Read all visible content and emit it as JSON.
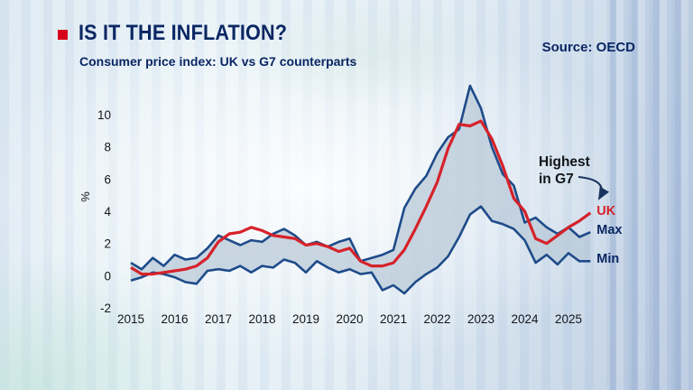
{
  "header": {
    "title": "IS IT THE INFLATION?",
    "subtitle": "Consumer price index: UK vs G7 counterparts",
    "source": "Source: OECD"
  },
  "annotation": {
    "line1": "Highest",
    "line2": "in G7"
  },
  "series_labels": {
    "uk": "UK",
    "max": "Max",
    "min": "Min"
  },
  "colors": {
    "brand_red": "#d6001c",
    "uk_line": "#d6222a",
    "band_line": "#1e4b8a",
    "band_fill": "#b7c8d6",
    "text_navy": "#0a2663",
    "arrow": "#17335e"
  },
  "chart_data": {
    "type": "line",
    "title": "IS IT THE INFLATION?",
    "subtitle": "Consumer price index: UK vs G7 counterparts",
    "source": "Source: OECD",
    "ylabel": "%",
    "xlabel": "",
    "ylim": [
      -2,
      12
    ],
    "xlim": [
      2015,
      2025.5
    ],
    "y_ticks": [
      10,
      8,
      6,
      4,
      2,
      0,
      -2
    ],
    "x_ticks": [
      2015,
      2016,
      2017,
      2018,
      2019,
      2020,
      2021,
      2022,
      2023,
      2024,
      2025
    ],
    "x_start": 2015,
    "x_step": 0.25,
    "grid": false,
    "legend_position": "right-edge-labels",
    "annotations": [
      "Highest in G7"
    ],
    "band": {
      "upper": "Max",
      "lower": "Min"
    },
    "series": [
      {
        "name": "UK",
        "values": [
          0.5,
          0.1,
          0.1,
          0.2,
          0.3,
          0.4,
          0.6,
          1.1,
          2.1,
          2.6,
          2.7,
          3.0,
          2.8,
          2.5,
          2.4,
          2.3,
          1.9,
          2.0,
          1.8,
          1.5,
          1.7,
          0.9,
          0.6,
          0.6,
          0.8,
          1.6,
          2.9,
          4.3,
          5.8,
          7.9,
          9.4,
          9.3,
          9.6,
          8.5,
          6.8,
          4.8,
          4.0,
          2.3,
          2.0,
          2.5,
          3.0,
          3.4,
          3.9
        ]
      },
      {
        "name": "Max",
        "values": [
          0.8,
          0.4,
          1.1,
          0.6,
          1.3,
          1.0,
          1.1,
          1.7,
          2.5,
          2.2,
          1.9,
          2.2,
          2.1,
          2.6,
          2.9,
          2.5,
          1.9,
          2.1,
          1.8,
          2.1,
          2.3,
          0.9,
          1.1,
          1.3,
          1.6,
          4.2,
          5.4,
          6.2,
          7.6,
          8.6,
          9.1,
          11.8,
          10.4,
          8.0,
          6.3,
          5.6,
          3.3,
          3.6,
          3.0,
          2.6,
          3.0,
          2.4,
          2.7
        ]
      },
      {
        "name": "Min",
        "values": [
          -0.3,
          -0.1,
          0.2,
          0.1,
          -0.1,
          -0.4,
          -0.5,
          0.3,
          0.4,
          0.3,
          0.6,
          0.2,
          0.6,
          0.5,
          1.0,
          0.8,
          0.2,
          0.9,
          0.5,
          0.2,
          0.4,
          0.1,
          0.2,
          -0.9,
          -0.6,
          -1.1,
          -0.4,
          0.1,
          0.5,
          1.2,
          2.4,
          3.8,
          4.3,
          3.4,
          3.2,
          2.9,
          2.2,
          0.8,
          1.3,
          0.7,
          1.4,
          0.9,
          0.9
        ]
      }
    ]
  }
}
